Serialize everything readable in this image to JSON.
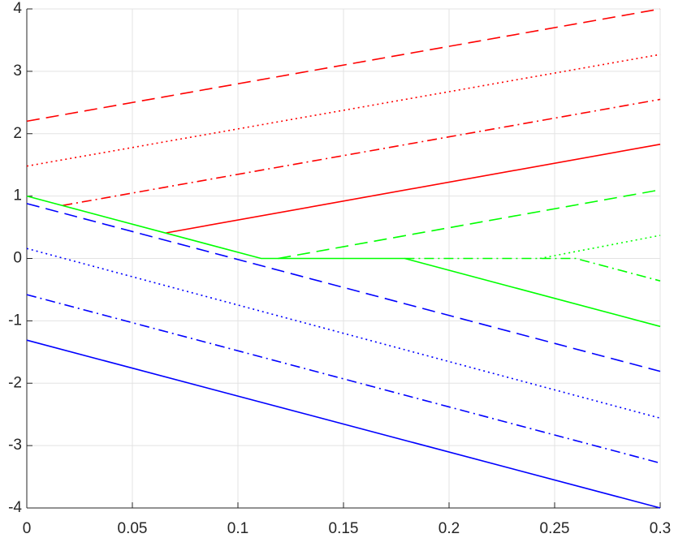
{
  "chart_data": {
    "type": "line",
    "xlim": [
      0,
      0.3
    ],
    "xticks": [
      0,
      0.05,
      0.1,
      0.15,
      0.2,
      0.25,
      0.3
    ],
    "ylim": [
      -4,
      4
    ],
    "yticks": [
      -4,
      -3,
      -2,
      -1,
      0,
      1,
      2,
      3,
      4
    ],
    "grid": true,
    "series": [
      {
        "color": "#ff0000",
        "dash": "dashed",
        "x": [
          0,
          0.3
        ],
        "values": [
          2.2,
          4.0
        ]
      },
      {
        "color": "#ff0000",
        "dash": "dotted",
        "x": [
          0,
          0.3
        ],
        "values": [
          1.48,
          3.27
        ]
      },
      {
        "color": "#ff0000",
        "dash": "dashdot",
        "x": [
          0.017,
          0.3
        ],
        "values": [
          0.85,
          2.55
        ]
      },
      {
        "color": "#ff0000",
        "dash": "solid",
        "x": [
          0.066,
          0.3
        ],
        "values": [
          0.41,
          1.83
        ]
      },
      {
        "color": "#00ff00",
        "dash": "solid",
        "x": [
          0,
          0.111,
          0.179,
          0.3
        ],
        "values": [
          1.0,
          0,
          0,
          -1.09
        ]
      },
      {
        "color": "#00ff00",
        "dash": "dashed",
        "x": [
          0.119,
          0.3
        ],
        "values": [
          0,
          1.1
        ]
      },
      {
        "color": "#00ff00",
        "dash": "dashdot",
        "x": [
          0.179,
          0.26,
          0.3
        ],
        "values": [
          0,
          0,
          -0.36
        ]
      },
      {
        "color": "#00ff00",
        "dash": "dotted",
        "x": [
          0.243,
          0.3
        ],
        "values": [
          0,
          0.37
        ]
      },
      {
        "color": "#0000ff",
        "dash": "dashed",
        "x": [
          0,
          0.3
        ],
        "values": [
          0.88,
          -1.81
        ]
      },
      {
        "color": "#0000ff",
        "dash": "dotted",
        "x": [
          0,
          0.3
        ],
        "values": [
          0.16,
          -2.56
        ]
      },
      {
        "color": "#0000ff",
        "dash": "dashdot",
        "x": [
          0,
          0.3
        ],
        "values": [
          -0.58,
          -3.28
        ]
      },
      {
        "color": "#0000ff",
        "dash": "solid",
        "x": [
          0,
          0.3
        ],
        "values": [
          -1.31,
          -4.0
        ]
      }
    ]
  }
}
